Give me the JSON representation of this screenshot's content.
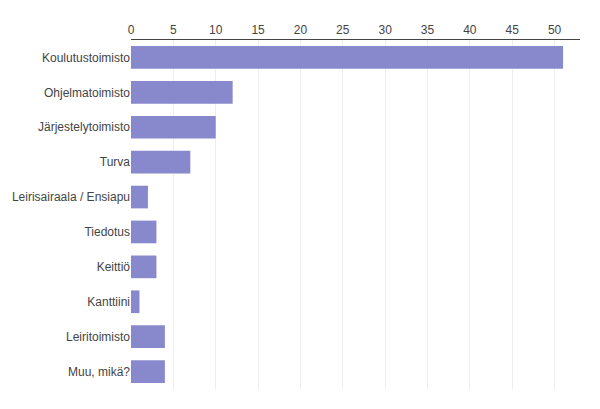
{
  "chart_data": {
    "type": "bar",
    "orientation": "horizontal",
    "categories": [
      "Muu, mikä?",
      "Leiritoimisto",
      "Kanttiini",
      "Keittiö",
      "Tiedotus",
      "Leirisairaala / Ensiapu",
      "Turva",
      "Järjestelytoimisto",
      "Ohjelmatoimisto",
      "Koulutustoimisto"
    ],
    "values": [
      4,
      4,
      1,
      3,
      3,
      2,
      7,
      10,
      12,
      51
    ],
    "color": "#8888cc",
    "xlim": [
      0,
      53
    ],
    "xticks": [
      0,
      5,
      10,
      15,
      20,
      25,
      30,
      35,
      40,
      45,
      50
    ],
    "grid": true
  }
}
